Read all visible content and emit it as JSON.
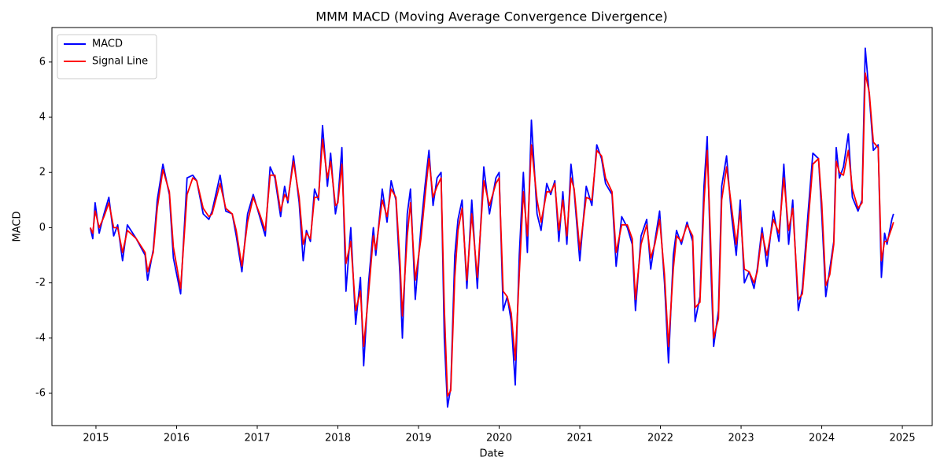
{
  "chart_data": {
    "type": "line",
    "title": "MMM MACD (Moving Average Convergence Divergence)",
    "x_label": "Date",
    "y_label": "MACD",
    "x": [
      2014.93,
      2014.96,
      2014.99,
      2015.04,
      2015.1,
      2015.16,
      2015.22,
      2015.27,
      2015.33,
      2015.39,
      2015.5,
      2015.61,
      2015.64,
      2015.71,
      2015.76,
      2015.83,
      2015.91,
      2015.96,
      2016.05,
      2016.13,
      2016.2,
      2016.25,
      2016.33,
      2016.4,
      2016.44,
      2016.54,
      2016.61,
      2016.69,
      2016.74,
      2016.81,
      2016.88,
      2016.95,
      2017.03,
      2017.1,
      2017.16,
      2017.22,
      2017.29,
      2017.34,
      2017.38,
      2017.45,
      2017.52,
      2017.57,
      2017.61,
      2017.66,
      2017.71,
      2017.76,
      2017.81,
      2017.87,
      2017.91,
      2017.97,
      2018.0,
      2018.05,
      2018.1,
      2018.16,
      2018.22,
      2018.28,
      2018.32,
      2018.38,
      2018.44,
      2018.47,
      2018.55,
      2018.61,
      2018.66,
      2018.72,
      2018.77,
      2018.8,
      2018.86,
      2018.9,
      2018.96,
      2019.03,
      2019.08,
      2019.13,
      2019.18,
      2019.23,
      2019.28,
      2019.32,
      2019.36,
      2019.4,
      2019.45,
      2019.49,
      2019.54,
      2019.6,
      2019.66,
      2019.73,
      2019.81,
      2019.88,
      2019.96,
      2020.0,
      2020.05,
      2020.1,
      2020.15,
      2020.2,
      2020.25,
      2020.3,
      2020.35,
      2020.4,
      2020.47,
      2020.52,
      2020.59,
      2020.64,
      2020.69,
      2020.74,
      2020.79,
      2020.84,
      2020.89,
      2020.93,
      2021.0,
      2021.08,
      2021.15,
      2021.21,
      2021.27,
      2021.32,
      2021.4,
      2021.45,
      2021.52,
      2021.59,
      2021.65,
      2021.69,
      2021.76,
      2021.83,
      2021.88,
      2021.93,
      2021.99,
      2022.05,
      2022.1,
      2022.16,
      2022.2,
      2022.26,
      2022.33,
      2022.4,
      2022.43,
      2022.49,
      2022.54,
      2022.58,
      2022.62,
      2022.66,
      2022.72,
      2022.76,
      2022.82,
      2022.88,
      2022.94,
      2022.99,
      2023.04,
      2023.1,
      2023.16,
      2023.2,
      2023.26,
      2023.32,
      2023.4,
      2023.47,
      2023.53,
      2023.59,
      2023.64,
      2023.71,
      2023.76,
      2023.83,
      2023.89,
      2023.96,
      2024.0,
      2024.05,
      2024.1,
      2024.15,
      2024.18,
      2024.22,
      2024.27,
      2024.33,
      2024.38,
      2024.45,
      2024.5,
      2024.54,
      2024.59,
      2024.64,
      2024.7,
      2024.74,
      2024.78,
      2024.81,
      2024.87,
      2024.89
    ],
    "series": [
      {
        "name": "MACD",
        "color": "#0000ff",
        "values": [
          0,
          -0.4,
          0.9,
          -0.2,
          0.5,
          1.1,
          -0.3,
          0.1,
          -1.2,
          0.1,
          -0.4,
          -1.0,
          -1.9,
          -0.8,
          1.0,
          2.3,
          1.2,
          -1.1,
          -2.4,
          1.8,
          1.9,
          1.7,
          0.5,
          0.3,
          0.6,
          1.9,
          0.6,
          0.5,
          -0.3,
          -1.6,
          0.5,
          1.2,
          0.4,
          -0.3,
          2.2,
          1.8,
          0.4,
          1.5,
          0.9,
          2.6,
          0.9,
          -1.2,
          -0.1,
          -0.5,
          1.4,
          1.0,
          3.7,
          1.5,
          2.7,
          0.5,
          1.0,
          2.9,
          -2.3,
          0.0,
          -3.5,
          -1.8,
          -5.0,
          -2.0,
          0.0,
          -1.0,
          1.4,
          0.2,
          1.7,
          1.0,
          -1.7,
          -4.0,
          0.5,
          1.4,
          -2.6,
          0.0,
          1.5,
          2.8,
          0.8,
          1.8,
          2.0,
          -4.0,
          -6.5,
          -5.8,
          -1.0,
          0.3,
          1.0,
          -2.2,
          1.0,
          -2.2,
          2.2,
          0.5,
          1.8,
          2.0,
          -3.0,
          -2.5,
          -3.4,
          -5.7,
          -1.0,
          2.0,
          -0.9,
          3.9,
          0.5,
          -0.1,
          1.6,
          1.2,
          1.7,
          -0.5,
          1.3,
          -0.6,
          2.3,
          1.3,
          -1.2,
          1.5,
          0.8,
          3.0,
          2.5,
          1.6,
          1.2,
          -1.4,
          0.4,
          0.0,
          -0.6,
          -3.0,
          -0.3,
          0.3,
          -1.5,
          -0.5,
          0.6,
          -2.0,
          -4.9,
          -1.0,
          -0.1,
          -0.6,
          0.2,
          -0.5,
          -3.4,
          -2.5,
          1.5,
          3.3,
          -1.0,
          -4.3,
          -3.0,
          1.5,
          2.6,
          0.5,
          -1.0,
          1.0,
          -2.0,
          -1.6,
          -2.2,
          -1.5,
          0.0,
          -1.4,
          0.6,
          -0.5,
          2.3,
          -0.6,
          1.0,
          -3.0,
          -2.2,
          0.5,
          2.7,
          2.5,
          0.5,
          -2.5,
          -1.5,
          -0.5,
          2.9,
          1.8,
          2.2,
          3.4,
          1.1,
          0.6,
          1.0,
          6.5,
          4.8,
          2.8,
          3.0,
          -1.8,
          -0.2,
          -0.6,
          0.3,
          0.5
        ]
      },
      {
        "name": "Signal Line",
        "color": "#ff0000",
        "values": [
          0,
          -0.2,
          0.6,
          0.0,
          0.4,
          0.9,
          0.0,
          0.0,
          -0.9,
          -0.1,
          -0.4,
          -0.9,
          -1.6,
          -0.9,
          0.7,
          2.1,
          1.3,
          -0.7,
          -2.2,
          1.2,
          1.8,
          1.7,
          0.7,
          0.4,
          0.5,
          1.6,
          0.7,
          0.5,
          -0.1,
          -1.4,
          0.2,
          1.1,
          0.5,
          -0.1,
          1.9,
          1.9,
          0.6,
          1.2,
          1.0,
          2.4,
          1.1,
          -0.6,
          -0.2,
          -0.4,
          1.1,
          1.1,
          3.2,
          1.8,
          2.4,
          0.8,
          0.9,
          2.3,
          -1.3,
          -0.5,
          -3.0,
          -2.3,
          -4.3,
          -2.4,
          -0.3,
          -0.8,
          1.0,
          0.4,
          1.4,
          1.1,
          -1.2,
          -3.2,
          -0.3,
          0.9,
          -1.9,
          -0.4,
          1.1,
          2.5,
          1.1,
          1.5,
          1.8,
          -2.9,
          -6.1,
          -5.9,
          -1.8,
          -0.1,
          0.7,
          -1.9,
          0.5,
          -1.8,
          1.7,
          0.8,
          1.6,
          1.8,
          -2.3,
          -2.5,
          -3.1,
          -4.8,
          -1.7,
          1.3,
          -0.3,
          3.0,
          1.0,
          0.2,
          1.3,
          1.3,
          1.6,
          -0.1,
          1.0,
          -0.3,
          1.8,
          1.4,
          -0.8,
          1.1,
          1.0,
          2.8,
          2.6,
          1.8,
          1.3,
          -0.9,
          0.1,
          0.1,
          -0.4,
          -2.6,
          -0.6,
          0.1,
          -1.1,
          -0.6,
          0.3,
          -1.7,
          -4.3,
          -1.5,
          -0.3,
          -0.5,
          0.1,
          -0.3,
          -2.9,
          -2.7,
          0.9,
          2.8,
          -0.3,
          -4.0,
          -3.3,
          1.0,
          2.2,
          0.8,
          -0.6,
          0.6,
          -1.5,
          -1.6,
          -2.0,
          -1.6,
          -0.2,
          -1.0,
          0.3,
          -0.2,
          1.8,
          -0.1,
          0.7,
          -2.6,
          -2.4,
          0.1,
          2.3,
          2.5,
          0.9,
          -2.1,
          -1.7,
          -0.6,
          2.4,
          2.0,
          1.9,
          2.8,
          1.4,
          0.7,
          0.9,
          5.6,
          4.9,
          3.1,
          2.9,
          -1.2,
          -0.5,
          -0.5,
          0.0,
          0.2
        ]
      }
    ],
    "xlim": [
      2014.454,
      2025.37
    ],
    "xticks": [
      2015,
      2016,
      2017,
      2018,
      2019,
      2020,
      2021,
      2022,
      2023,
      2024,
      2025
    ],
    "ylim": [
      -7.17,
      7.25
    ],
    "yticks": [
      -6,
      -4,
      -2,
      0,
      2,
      4,
      6
    ],
    "legend": "upper left"
  }
}
